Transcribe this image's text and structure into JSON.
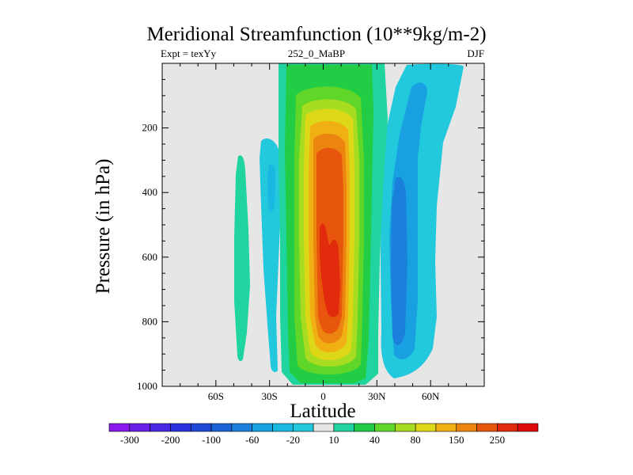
{
  "chart_data": {
    "type": "contour",
    "title": "Meridional Streamfunction (10**9kg/m-2)",
    "subtitle_left": "Expt = texYy",
    "subtitle_center": "252_0_MaBP",
    "subtitle_right": "DJF",
    "xlabel": "Latitude",
    "ylabel": "Pressure (in hPa)",
    "x_units": "degrees latitude",
    "y_units": "hPa",
    "xlim": [
      -90,
      90
    ],
    "ylim": [
      1000,
      0
    ],
    "x_ticks": [
      -60,
      -30,
      0,
      30,
      60
    ],
    "x_tick_labels": [
      "60S",
      "30S",
      "0",
      "30N",
      "60N"
    ],
    "y_ticks": [
      200,
      400,
      600,
      800,
      1000
    ],
    "y_tick_labels": [
      "200",
      "400",
      "600",
      "800",
      "1000"
    ],
    "background_color": "#e6e6e6",
    "colorbar": {
      "levels": [
        -300,
        -250,
        -200,
        -150,
        -100,
        -80,
        -60,
        -40,
        -20,
        -10,
        10,
        20,
        40,
        60,
        80,
        100,
        150,
        200,
        250,
        300
      ],
      "labels": [
        "-300",
        "-200",
        "-100",
        "-60",
        "-20",
        "10",
        "40",
        "80",
        "150",
        "250"
      ],
      "colors": [
        "#8b17ee",
        "#6a1ee8",
        "#4a28e2",
        "#2e32de",
        "#1e48d8",
        "#1a62d8",
        "#1a80dc",
        "#18a0e0",
        "#18b8e0",
        "#22c8dc",
        "#e6e6e6",
        "#20d4a0",
        "#22cc44",
        "#60d628",
        "#a8dc20",
        "#dcd818",
        "#f0b014",
        "#ec8410",
        "#e8560e",
        "#e22a0c",
        "#dc0a0a"
      ]
    },
    "features": [
      {
        "name": "tropical overturning cell",
        "sign": "positive",
        "lat_range": [
          -20,
          22
        ],
        "pressure_range": [
          0,
          990
        ],
        "max_value": 280,
        "max_lat": 5,
        "max_pressure": 650
      },
      {
        "name": "northern mid-latitude cell",
        "sign": "negative",
        "lat_range": [
          25,
          60
        ],
        "pressure_range": [
          30,
          960
        ],
        "min_value": -45,
        "min_lat": 43,
        "min_pressure": 550
      },
      {
        "name": "southern mid-latitude cell",
        "sign": "negative",
        "lat_range": [
          -35,
          -25
        ],
        "pressure_range": [
          200,
          950
        ],
        "min_value": -20,
        "min_lat": -30,
        "min_pressure": 400
      },
      {
        "name": "southern high-latitude cell",
        "sign": "positive",
        "lat_range": [
          -51,
          -45
        ],
        "pressure_range": [
          280,
          910
        ],
        "max_value": 15,
        "max_lat": -48,
        "max_pressure": 550
      }
    ]
  }
}
